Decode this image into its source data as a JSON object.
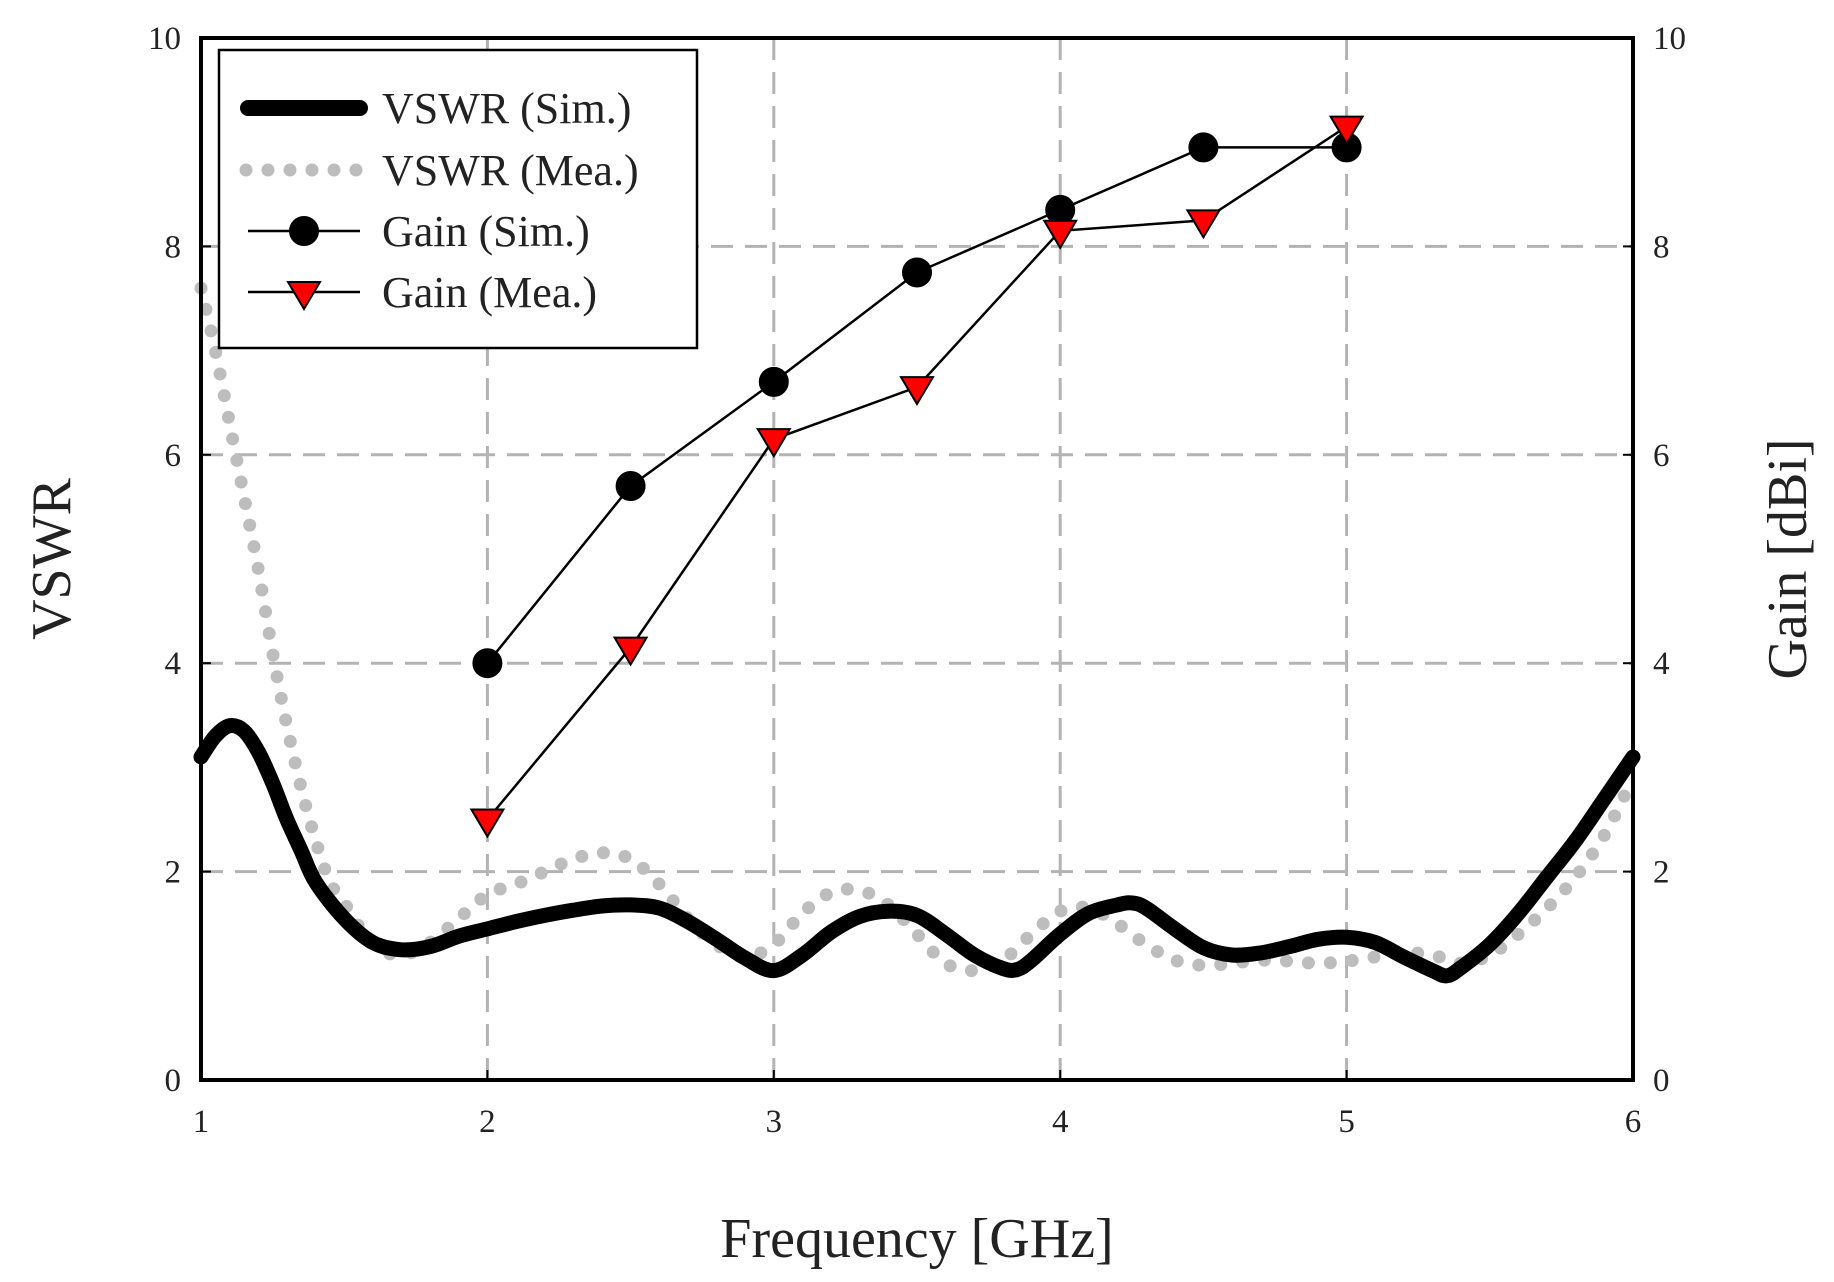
{
  "chart_data": {
    "type": "line",
    "xlabel": "Frequency [GHz]",
    "ylabel": "VSWR",
    "y2label": "Gain [dBi]",
    "xlim": [
      1,
      6
    ],
    "ylim": [
      0,
      10
    ],
    "y2lim": [
      0,
      10
    ],
    "x_ticks": [
      "1",
      "2",
      "3",
      "4",
      "5",
      "6"
    ],
    "y_ticks": [
      "0",
      "2",
      "4",
      "6",
      "8",
      "10"
    ],
    "y2_ticks": [
      "0",
      "2",
      "4",
      "6",
      "8",
      "10"
    ],
    "grid": true,
    "legend_position": "top-left",
    "series": [
      {
        "name": "VSWR (Sim.)",
        "axis": "left",
        "style": "thick-solid",
        "color": "#000000",
        "x": [
          1.0,
          1.05,
          1.1,
          1.15,
          1.2,
          1.25,
          1.3,
          1.35,
          1.4,
          1.5,
          1.6,
          1.7,
          1.8,
          1.9,
          2.0,
          2.1,
          2.2,
          2.3,
          2.4,
          2.5,
          2.6,
          2.7,
          2.8,
          2.9,
          3.0,
          3.1,
          3.2,
          3.3,
          3.4,
          3.5,
          3.6,
          3.7,
          3.8,
          3.85,
          3.9,
          4.0,
          4.1,
          4.2,
          4.25,
          4.3,
          4.4,
          4.5,
          4.6,
          4.7,
          4.8,
          4.9,
          5.0,
          5.1,
          5.2,
          5.3,
          5.35,
          5.4,
          5.5,
          5.6,
          5.7,
          5.8,
          5.9,
          6.0
        ],
        "y": [
          3.1,
          3.3,
          3.4,
          3.35,
          3.15,
          2.85,
          2.5,
          2.2,
          1.9,
          1.55,
          1.32,
          1.25,
          1.28,
          1.38,
          1.45,
          1.52,
          1.58,
          1.63,
          1.67,
          1.68,
          1.65,
          1.52,
          1.35,
          1.17,
          1.05,
          1.2,
          1.42,
          1.57,
          1.62,
          1.58,
          1.4,
          1.2,
          1.07,
          1.06,
          1.15,
          1.4,
          1.6,
          1.68,
          1.7,
          1.65,
          1.45,
          1.27,
          1.2,
          1.22,
          1.28,
          1.35,
          1.37,
          1.32,
          1.18,
          1.05,
          1.0,
          1.08,
          1.3,
          1.6,
          1.95,
          2.3,
          2.7,
          3.1
        ]
      },
      {
        "name": "VSWR (Mea.)",
        "axis": "left",
        "style": "dotted",
        "color": "#bdbdbd",
        "x": [
          1.0,
          1.05,
          1.1,
          1.15,
          1.2,
          1.25,
          1.3,
          1.35,
          1.4,
          1.45,
          1.5,
          1.6,
          1.7,
          1.8,
          1.9,
          2.0,
          2.1,
          2.2,
          2.3,
          2.4,
          2.5,
          2.6,
          2.7,
          2.8,
          2.9,
          3.0,
          3.1,
          3.2,
          3.3,
          3.4,
          3.5,
          3.6,
          3.7,
          3.8,
          3.9,
          4.0,
          4.1,
          4.2,
          4.3,
          4.4,
          4.5,
          4.6,
          4.7,
          4.8,
          4.9,
          5.0,
          5.1,
          5.2,
          5.3,
          5.4,
          5.5,
          5.6,
          5.7,
          5.8,
          5.9,
          6.0
        ],
        "y": [
          7.6,
          7.0,
          6.3,
          5.6,
          4.9,
          4.1,
          3.4,
          2.8,
          2.3,
          1.9,
          1.7,
          1.3,
          1.2,
          1.32,
          1.55,
          1.78,
          1.88,
          2.0,
          2.12,
          2.18,
          2.12,
          1.88,
          1.55,
          1.3,
          1.18,
          1.3,
          1.6,
          1.8,
          1.82,
          1.68,
          1.4,
          1.12,
          1.05,
          1.15,
          1.4,
          1.62,
          1.65,
          1.5,
          1.3,
          1.15,
          1.1,
          1.12,
          1.15,
          1.14,
          1.12,
          1.14,
          1.18,
          1.22,
          1.2,
          1.12,
          1.2,
          1.4,
          1.65,
          1.95,
          2.35,
          2.9
        ]
      },
      {
        "name": "Gain (Sim.)",
        "axis": "right",
        "style": "line-circle",
        "color": "#000000",
        "marker_fill": "#000000",
        "x": [
          2.0,
          2.5,
          3.0,
          3.5,
          4.0,
          4.5,
          5.0
        ],
        "y": [
          4.0,
          5.7,
          6.7,
          7.75,
          8.35,
          8.95,
          8.95
        ]
      },
      {
        "name": "Gain (Mea.)",
        "axis": "right",
        "style": "line-triangle",
        "color": "#000000",
        "marker_fill": "#ff0000",
        "x": [
          2.0,
          2.5,
          3.0,
          3.5,
          4.0,
          4.5,
          5.0
        ],
        "y": [
          2.5,
          4.15,
          6.15,
          6.65,
          8.15,
          8.25,
          9.15
        ]
      }
    ]
  }
}
